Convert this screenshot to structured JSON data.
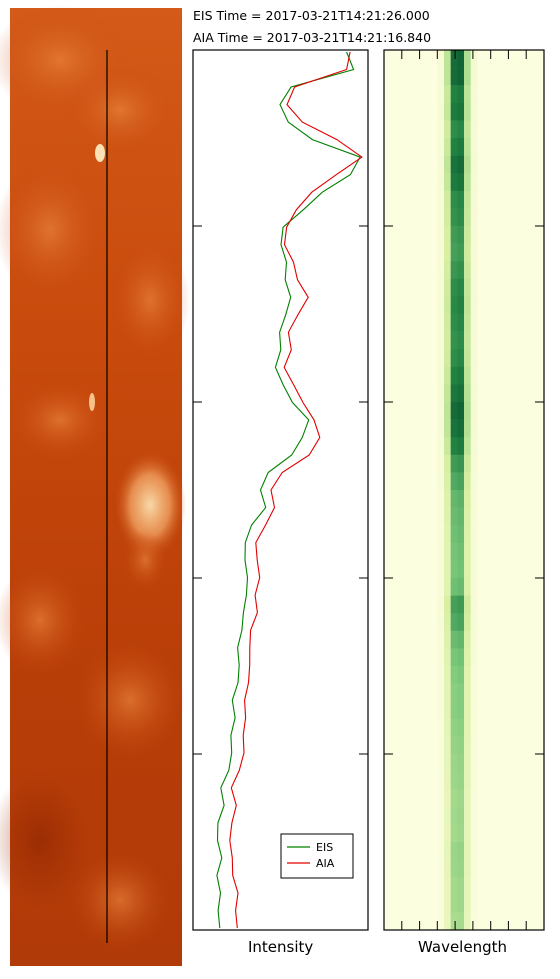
{
  "header": {
    "eis_time": "EIS Time = 2017-03-21T14:21:26.000",
    "aia_time": "AIA Time = 2017-03-21T14:21:16.840"
  },
  "chart_data": [
    {
      "type": "image",
      "description_colors": {
        "base": "#b53a06",
        "bright": "#f7ce9a"
      },
      "slit_line": true
    },
    {
      "type": "line",
      "xlabel": "Intensity",
      "ylabel": "",
      "xlim": [
        0,
        1
      ],
      "ylim": [
        0,
        1
      ],
      "grid": false,
      "legend": {
        "placement": "bottom-right",
        "entries": [
          "EIS",
          "AIA"
        ]
      },
      "series": [
        {
          "name": "EIS",
          "color": "#008000",
          "y": [
            0.0,
            0.02,
            0.04,
            0.06,
            0.08,
            0.1,
            0.12,
            0.14,
            0.16,
            0.18,
            0.2,
            0.22,
            0.24,
            0.26,
            0.28,
            0.3,
            0.32,
            0.34,
            0.36,
            0.38,
            0.4,
            0.42,
            0.44,
            0.46,
            0.48,
            0.5,
            0.52,
            0.54,
            0.56,
            0.58,
            0.6,
            0.62,
            0.64,
            0.66,
            0.68,
            0.7,
            0.72,
            0.74,
            0.76,
            0.78,
            0.8,
            0.82,
            0.84,
            0.86,
            0.88,
            0.9,
            0.92,
            0.94,
            0.96,
            0.98,
            1.0
          ],
          "x": [
            0.88,
            0.92,
            0.58,
            0.52,
            0.56,
            0.68,
            0.95,
            0.88,
            0.72,
            0.62,
            0.5,
            0.48,
            0.52,
            0.55,
            0.56,
            0.53,
            0.5,
            0.52,
            0.48,
            0.52,
            0.56,
            0.65,
            0.62,
            0.56,
            0.42,
            0.38,
            0.4,
            0.32,
            0.3,
            0.31,
            0.33,
            0.32,
            0.3,
            0.29,
            0.26,
            0.25,
            0.24,
            0.22,
            0.24,
            0.21,
            0.2,
            0.18,
            0.17,
            0.18,
            0.16,
            0.15,
            0.17,
            0.15,
            0.16,
            0.15,
            0.15
          ]
        },
        {
          "name": "AIA",
          "color": "#e00000",
          "y": [
            0.0,
            0.02,
            0.04,
            0.06,
            0.08,
            0.1,
            0.12,
            0.14,
            0.16,
            0.18,
            0.2,
            0.22,
            0.24,
            0.26,
            0.28,
            0.3,
            0.32,
            0.34,
            0.36,
            0.38,
            0.4,
            0.42,
            0.44,
            0.46,
            0.48,
            0.5,
            0.52,
            0.54,
            0.56,
            0.58,
            0.6,
            0.62,
            0.64,
            0.66,
            0.68,
            0.7,
            0.72,
            0.74,
            0.76,
            0.78,
            0.8,
            0.82,
            0.84,
            0.86,
            0.88,
            0.9,
            0.92,
            0.94,
            0.96,
            0.98,
            1.0
          ],
          "x": [
            0.9,
            0.88,
            0.6,
            0.56,
            0.64,
            0.82,
            0.96,
            0.8,
            0.66,
            0.58,
            0.52,
            0.5,
            0.56,
            0.62,
            0.66,
            0.6,
            0.55,
            0.58,
            0.53,
            0.58,
            0.62,
            0.68,
            0.72,
            0.66,
            0.5,
            0.44,
            0.45,
            0.4,
            0.36,
            0.38,
            0.4,
            0.37,
            0.38,
            0.34,
            0.33,
            0.31,
            0.3,
            0.29,
            0.3,
            0.28,
            0.27,
            0.24,
            0.23,
            0.25,
            0.24,
            0.22,
            0.23,
            0.24,
            0.26,
            0.25,
            0.25
          ]
        }
      ]
    },
    {
      "type": "heatmap",
      "xlabel": "Wavelength",
      "colormap": [
        "#ffffe5",
        "#d9f0a3",
        "#78c679",
        "#238443",
        "#004529"
      ],
      "line_center": 0.46,
      "profile": [
        0.95,
        0.95,
        0.85,
        0.88,
        0.8,
        0.85,
        0.92,
        0.88,
        0.8,
        0.78,
        0.74,
        0.72,
        0.76,
        0.8,
        0.82,
        0.8,
        0.78,
        0.8,
        0.85,
        0.9,
        0.95,
        0.92,
        0.85,
        0.74,
        0.68,
        0.62,
        0.6,
        0.58,
        0.56,
        0.55,
        0.58,
        0.72,
        0.68,
        0.6,
        0.55,
        0.52,
        0.5,
        0.5,
        0.48,
        0.46,
        0.45,
        0.44,
        0.42,
        0.43,
        0.42,
        0.45,
        0.44,
        0.42,
        0.42,
        0.4
      ]
    }
  ]
}
